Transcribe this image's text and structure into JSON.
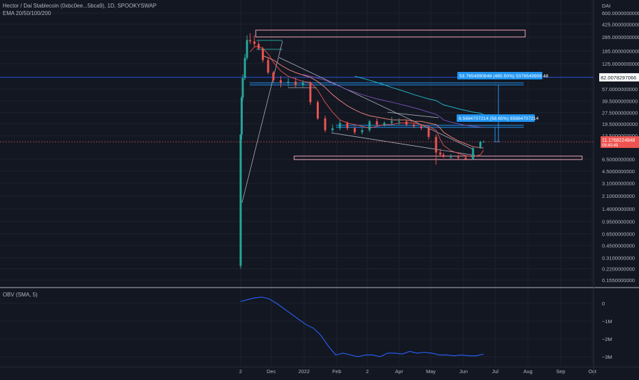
{
  "header": {
    "symbol_line": "Hector / Dai Stablecoin (0xbc0ee...5bca9), 1D, SPOOKYSWAP",
    "indicator_line": "EMA 20/50/100/200",
    "currency": "DAI"
  },
  "obv_panel": {
    "label": "OBV (SMA, 5)",
    "y_ticks": [
      "0",
      "−1M",
      "−2M",
      "−3M"
    ]
  },
  "price_axis": {
    "ticks": [
      "600.0000000000",
      "425.0000000000",
      "285.0000000000",
      "185.0000000000",
      "125.0000000000",
      "57.0000000000",
      "39.5000000000",
      "27.5000000000",
      "19.5000000000",
      "13.5000000000",
      "6.5000000000",
      "4.5000000000",
      "3.1000000000",
      "2.1000000000",
      "1.4000000000",
      "0.9500000000",
      "0.6500000000",
      "0.4500000000",
      "0.3100000000",
      "0.2200000000",
      "0.1550000000"
    ],
    "marker_label": "82.0078297066",
    "last_price_label": "11.1768224848",
    "countdown_label": "09:40:49"
  },
  "time_axis": {
    "ticks": [
      "2",
      "Dec",
      "2022",
      "Feb",
      "2",
      "Apr",
      "May",
      "Jun",
      "Jul",
      "Aug",
      "Sep",
      "Oct"
    ]
  },
  "annotations": {
    "measure_big": "53.7654990848 (485.50%) 5376549908 48",
    "measure_small": "6.5684707214 (58.65%) 65684707214"
  },
  "colors": {
    "background": "#131722",
    "grid": "#1e222d",
    "up": "#26a69a",
    "down": "#ef5350",
    "obv_line": "#2962ff",
    "measure": "#2196f3",
    "box": "#f4a7b9",
    "ema_slow": "#26c6da"
  },
  "chart_data": [
    {
      "type": "candlestick",
      "title": "Hector / Dai Stablecoin (0xbc0ee...5bca9), 1D, SPOOKYSWAP",
      "ylabel": "DAI",
      "yscale": "log",
      "ylim": [
        0.13,
        650
      ],
      "x": [
        "2021-11-02",
        "2021-11-03",
        "2021-11-04",
        "2021-11-06",
        "2021-11-08",
        "2021-11-11",
        "2021-11-15",
        "2021-11-19",
        "2021-11-23",
        "2021-11-28",
        "2021-12-03",
        "2021-12-10",
        "2021-12-17",
        "2021-12-24",
        "2021-12-31",
        "2022-01-07",
        "2022-01-14",
        "2022-01-21",
        "2022-01-28",
        "2022-02-04",
        "2022-02-11",
        "2022-02-18",
        "2022-02-25",
        "2022-03-04",
        "2022-03-11",
        "2022-03-18",
        "2022-03-25",
        "2022-04-01",
        "2022-04-08",
        "2022-04-15",
        "2022-04-22",
        "2022-04-29",
        "2022-05-06",
        "2022-05-10",
        "2022-05-13",
        "2022-05-20",
        "2022-05-27",
        "2022-06-03",
        "2022-06-10",
        "2022-06-17",
        "2022-06-20"
      ],
      "series": [
        {
          "name": "OHLC",
          "values": [
            0.24,
            14,
            45,
            80,
            150,
            260,
            255,
            230,
            200,
            140,
            95,
            75,
            70,
            72,
            65,
            70,
            38,
            23,
            16,
            17,
            20,
            17,
            15,
            16,
            21,
            19,
            20,
            21,
            21,
            19,
            18,
            17,
            13,
            8,
            7.5,
            7,
            7,
            6.8,
            6.5,
            9.2,
            11.18
          ]
        },
        {
          "name": "EMA 20",
          "values": [
            null,
            null,
            null,
            null,
            null,
            180,
            210,
            215,
            200,
            170,
            130,
            100,
            85,
            78,
            72,
            70,
            55,
            38,
            28,
            22,
            20,
            19,
            18,
            17,
            18,
            19,
            19,
            20,
            20,
            20,
            19,
            18,
            16,
            12,
            10,
            8.5,
            7.8,
            7.3,
            7,
            7.5,
            8.6
          ]
        },
        {
          "name": "EMA 50",
          "values": [
            null,
            null,
            null,
            null,
            null,
            null,
            null,
            null,
            160,
            150,
            140,
            120,
            105,
            95,
            88,
            82,
            72,
            60,
            48,
            40,
            34,
            30,
            27,
            25,
            24,
            23,
            22,
            22,
            22,
            21,
            21,
            20,
            19,
            17,
            15,
            13,
            11.5,
            10.5,
            9.6,
            9.3,
            9.2
          ]
        },
        {
          "name": "EMA 100",
          "values": [
            null,
            null,
            null,
            null,
            null,
            null,
            null,
            null,
            null,
            null,
            null,
            null,
            null,
            null,
            90,
            85,
            80,
            75,
            68,
            62,
            56,
            52,
            48,
            45,
            42,
            40,
            38,
            36,
            34,
            32,
            30,
            28,
            26,
            24,
            22,
            20.5,
            19.5,
            18.6,
            18,
            17.6,
            17.3
          ]
        },
        {
          "name": "EMA 200",
          "values": [
            null,
            null,
            null,
            null,
            null,
            null,
            null,
            null,
            null,
            null,
            null,
            null,
            null,
            null,
            null,
            null,
            null,
            null,
            null,
            null,
            null,
            85,
            80,
            75,
            70,
            65,
            60,
            56,
            52,
            48,
            45,
            42,
            40,
            37,
            35,
            33,
            31,
            29.5,
            28,
            27,
            26
          ]
        }
      ],
      "ohlc_points": [
        [
          0.24,
          14,
          0.22,
          14
        ],
        [
          14,
          46,
          12,
          44
        ],
        [
          44,
          90,
          40,
          80
        ],
        [
          80,
          170,
          75,
          150
        ],
        [
          150,
          300,
          140,
          260
        ],
        [
          260,
          320,
          230,
          250
        ],
        [
          250,
          300,
          210,
          230
        ],
        [
          230,
          250,
          190,
          200
        ],
        [
          200,
          210,
          130,
          140
        ],
        [
          140,
          150,
          90,
          95
        ],
        [
          95,
          100,
          70,
          75
        ],
        [
          75,
          85,
          60,
          70
        ],
        [
          70,
          80,
          62,
          72
        ],
        [
          72,
          82,
          60,
          65
        ],
        [
          65,
          75,
          60,
          70
        ],
        [
          70,
          72,
          35,
          38
        ],
        [
          38,
          40,
          22,
          23
        ],
        [
          23,
          25,
          15,
          16
        ],
        [
          16,
          19,
          15,
          17
        ],
        [
          17,
          22,
          16,
          20
        ],
        [
          20,
          21,
          16,
          17
        ],
        [
          17,
          18,
          14,
          15
        ],
        [
          15,
          17,
          14,
          16
        ],
        [
          16,
          22,
          15,
          21
        ],
        [
          21,
          23,
          18,
          19
        ],
        [
          19,
          21,
          18,
          20
        ],
        [
          20,
          24,
          19,
          21
        ],
        [
          21,
          23,
          19,
          21
        ],
        [
          21,
          22,
          18,
          19
        ],
        [
          19,
          20,
          17,
          18
        ],
        [
          18,
          19,
          16,
          17
        ],
        [
          17,
          18,
          12,
          13
        ],
        [
          13,
          14,
          5.5,
          8
        ],
        [
          8,
          9,
          7,
          7.5
        ],
        [
          7.5,
          8,
          6.8,
          7
        ],
        [
          7,
          7.6,
          6.6,
          7
        ],
        [
          7,
          7.4,
          6.5,
          6.8
        ],
        [
          6.8,
          7.2,
          6.3,
          6.5
        ],
        [
          6.5,
          9.5,
          6.4,
          9.2
        ],
        [
          9.2,
          11.5,
          9,
          11.18
        ],
        [
          11.18,
          11.6,
          10.9,
          11.18
        ]
      ],
      "ema_fast_values": [
        null,
        null,
        null,
        null,
        120,
        180,
        210,
        215,
        200,
        170,
        130,
        100,
        85,
        78,
        72,
        70,
        55,
        38,
        28,
        22,
        20,
        19,
        18,
        17,
        18,
        19,
        19,
        20,
        20,
        20,
        19,
        18,
        16,
        12,
        10,
        8.5,
        7.8,
        7.3,
        7,
        7.5,
        8.6
      ],
      "last_price": 11.1768224848
    },
    {
      "type": "line",
      "title": "OBV (SMA, 5)",
      "ylim": [
        -3.2,
        0.6
      ],
      "y_units": "M",
      "x": [
        "2021-11-02",
        "2021-11-08",
        "2021-11-15",
        "2021-11-22",
        "2021-11-29",
        "2021-12-06",
        "2021-12-13",
        "2021-12-20",
        "2021-12-27",
        "2022-01-03",
        "2022-01-10",
        "2022-01-17",
        "2022-01-24",
        "2022-01-31",
        "2022-02-07",
        "2022-02-14",
        "2022-02-21",
        "2022-02-28",
        "2022-03-07",
        "2022-03-14",
        "2022-03-21",
        "2022-03-28",
        "2022-04-04",
        "2022-04-11",
        "2022-04-18",
        "2022-04-25",
        "2022-05-02",
        "2022-05-09",
        "2022-05-16",
        "2022-05-23",
        "2022-05-30",
        "2022-06-06",
        "2022-06-13",
        "2022-06-20"
      ],
      "series": [
        {
          "name": "OBV",
          "values": [
            0.1,
            0.2,
            0.3,
            0.35,
            0.25,
            0.0,
            -0.3,
            -0.6,
            -0.9,
            -1.2,
            -1.4,
            -1.8,
            -2.4,
            -2.9,
            -2.8,
            -2.9,
            -3.0,
            -2.9,
            -2.9,
            -3.0,
            -2.8,
            -2.8,
            -2.85,
            -2.7,
            -2.8,
            -2.75,
            -2.8,
            -2.9,
            -2.9,
            -2.95,
            -2.9,
            -2.95,
            -2.95,
            -2.85
          ]
        }
      ]
    }
  ]
}
